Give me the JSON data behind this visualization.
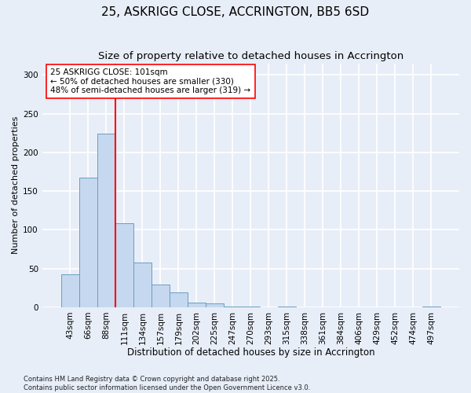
{
  "title": "25, ASKRIGG CLOSE, ACCRINGTON, BB5 6SD",
  "subtitle": "Size of property relative to detached houses in Accrington",
  "xlabel": "Distribution of detached houses by size in Accrington",
  "ylabel": "Number of detached properties",
  "categories": [
    "43sqm",
    "66sqm",
    "88sqm",
    "111sqm",
    "134sqm",
    "157sqm",
    "179sqm",
    "202sqm",
    "225sqm",
    "247sqm",
    "270sqm",
    "293sqm",
    "315sqm",
    "338sqm",
    "361sqm",
    "384sqm",
    "406sqm",
    "429sqm",
    "452sqm",
    "474sqm",
    "497sqm"
  ],
  "values": [
    42,
    167,
    224,
    108,
    58,
    29,
    19,
    6,
    5,
    1,
    1,
    0,
    1,
    0,
    0,
    0,
    0,
    0,
    0,
    0,
    1
  ],
  "bar_color": "#c5d8ef",
  "bar_edge_color": "#6a9ec0",
  "background_color": "#e8eef8",
  "grid_color": "#ffffff",
  "vline_x": 2.5,
  "vline_color": "red",
  "annotation_text": "25 ASKRIGG CLOSE: 101sqm\n← 50% of detached houses are smaller (330)\n48% of semi-detached houses are larger (319) →",
  "annotation_box_color": "white",
  "annotation_box_edge_color": "red",
  "ylim": [
    0,
    315
  ],
  "yticks": [
    0,
    50,
    100,
    150,
    200,
    250,
    300
  ],
  "footer": "Contains HM Land Registry data © Crown copyright and database right 2025.\nContains public sector information licensed under the Open Government Licence v3.0.",
  "title_fontsize": 11,
  "subtitle_fontsize": 9.5,
  "xlabel_fontsize": 8.5,
  "ylabel_fontsize": 8,
  "tick_fontsize": 7.5,
  "footer_fontsize": 6,
  "annotation_fontsize": 7.5
}
